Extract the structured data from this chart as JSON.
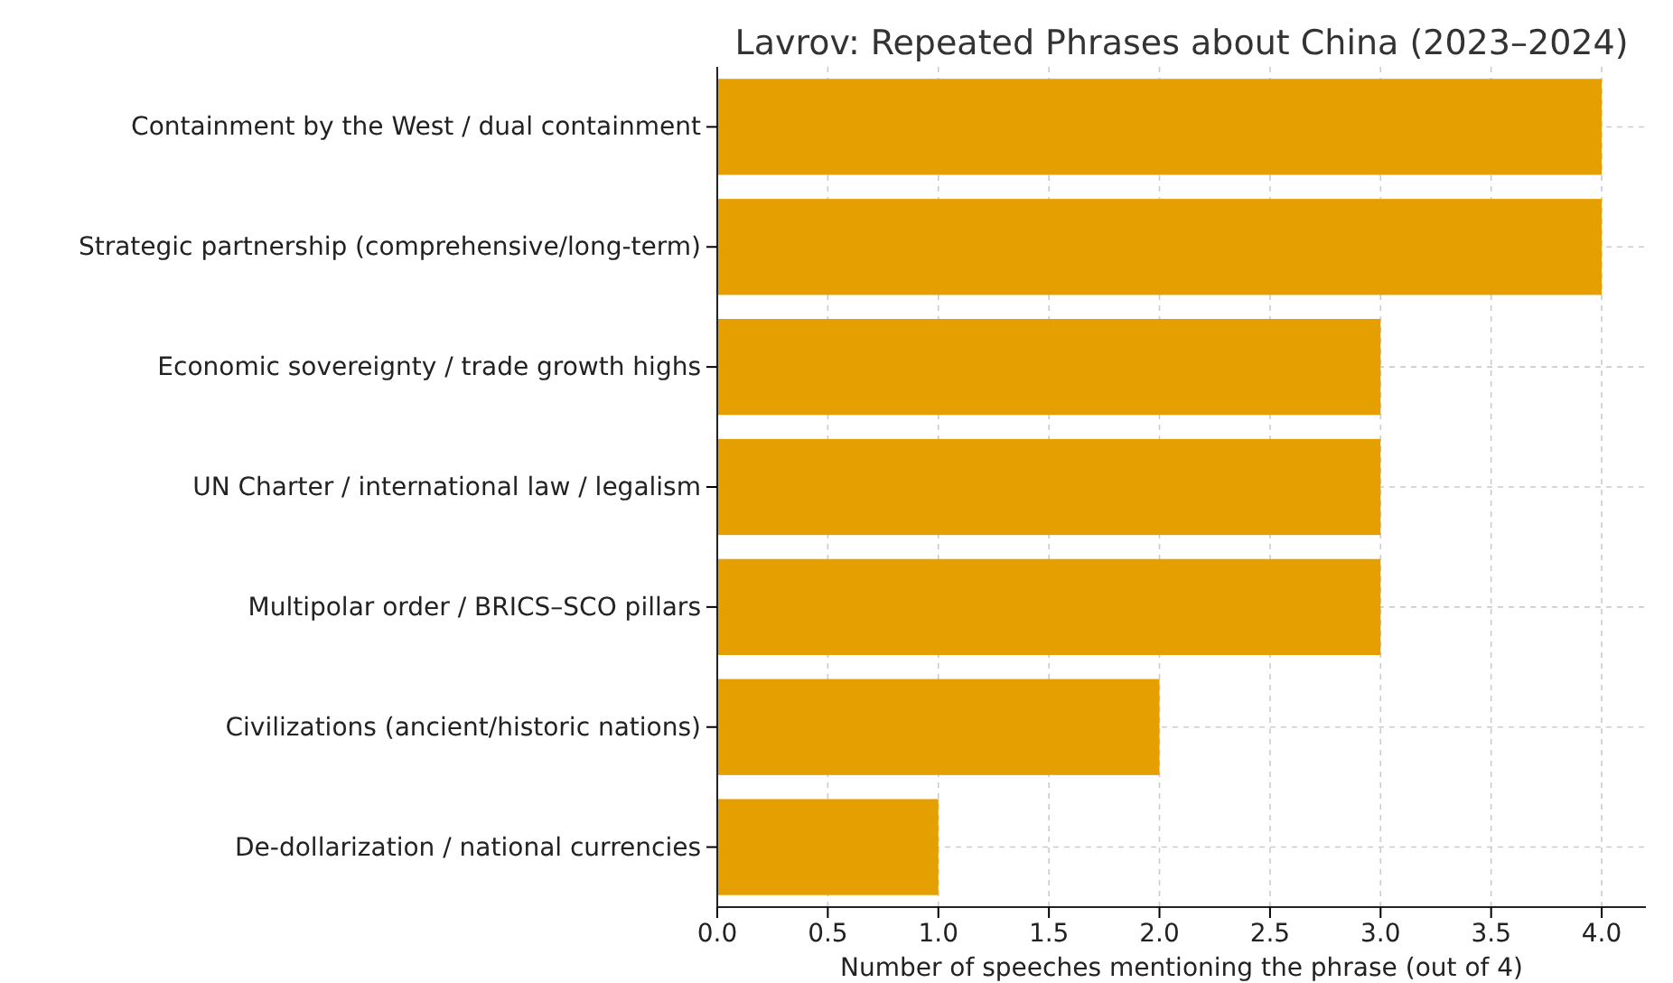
{
  "chart_data": {
    "type": "bar",
    "orientation": "horizontal",
    "title": "Lavrov: Repeated Phrases about China (2023–2024)",
    "xlabel": "Number of speeches mentioning the phrase (out of 4)",
    "categories": [
      "Containment by the West / dual containment",
      "Strategic partnership (comprehensive/long-term)",
      "Economic sovereignty / trade growth highs",
      "UN Charter / international law / legalism",
      "Multipolar order / BRICS–SCO pillars",
      "Civilizations (ancient/historic nations)",
      "De-dollarization / national currencies"
    ],
    "values": [
      4,
      4,
      3,
      3,
      3,
      2,
      1
    ],
    "color": "#e69f00",
    "xlim": [
      0,
      4.2
    ],
    "xticks": [
      {
        "value": 0,
        "label": "0.0"
      },
      0.5,
      {
        "value": 1,
        "label": "1.0"
      },
      1.5,
      {
        "value": 2,
        "label": "2.0"
      },
      2.5,
      {
        "value": 3,
        "label": "3.0"
      },
      3.5,
      {
        "value": 4,
        "label": "4.0"
      }
    ],
    "grid": true
  }
}
